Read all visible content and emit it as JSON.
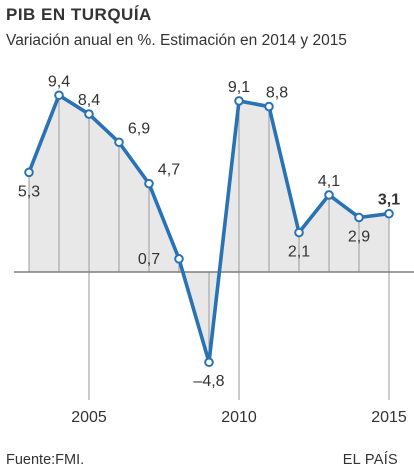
{
  "title": "PIB EN TURQUÍA",
  "subtitle": "Variación anual en %. Estimación en 2014 y 2015",
  "source": "Fuente:FMI.",
  "brand": "EL PAÍS",
  "colors": {
    "line": "#2872b5",
    "area": "#e8e8e8",
    "axis": "#7d7d7d",
    "text": "#333333"
  },
  "chart_data": {
    "type": "area",
    "title": "PIB EN TURQUÍA",
    "subtitle": "Variación anual en %. Estimación en 2014 y 2015",
    "x": [
      2003,
      2004,
      2005,
      2006,
      2007,
      2008,
      2009,
      2010,
      2011,
      2012,
      2013,
      2014,
      2015
    ],
    "labels": [
      "5,3",
      "9,4",
      "8,4",
      "6,9",
      "4,7",
      "0,7",
      "–4,8",
      "9,1",
      "8,8",
      "2,1",
      "4,1",
      "2,9",
      "3,1"
    ],
    "series": [
      {
        "values": [
          5.3,
          9.4,
          8.4,
          6.9,
          4.7,
          0.7,
          -4.8,
          9.1,
          8.8,
          2.1,
          4.1,
          2.9,
          3.1
        ]
      }
    ],
    "highlight_last": true,
    "xticks": [
      2005,
      2010,
      2015
    ],
    "xtick_labels": [
      "2005",
      "2010",
      "2015"
    ],
    "grid": false,
    "legend": "none"
  }
}
